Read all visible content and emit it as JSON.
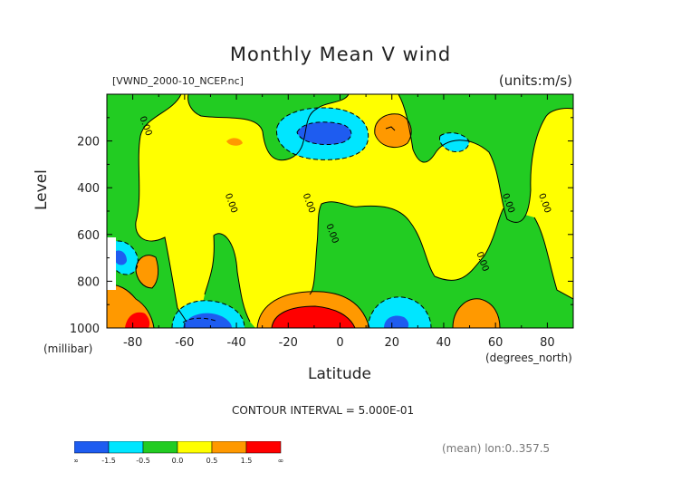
{
  "header": {
    "title": "Monthly Mean V wind",
    "file": "[VWND_2000-10_NCEP.nc]",
    "units": "(units:m/s)"
  },
  "footer": {
    "contour_interval": "CONTOUR INTERVAL = 5.000E-01",
    "mean": "(mean) lon:0..357.5"
  },
  "colorbar": {
    "colors": [
      "#1e5cf0",
      "#00e6ff",
      "#22cc22",
      "#ffff00",
      "#ff9900",
      "#ff0000"
    ],
    "labels": [
      "-∞",
      "-1.5",
      "-0.5",
      "0.0",
      "0.5",
      "1.5",
      "∞"
    ]
  },
  "chart_data": {
    "type": "contour",
    "title": "Monthly Mean V wind",
    "xlabel": "Latitude",
    "ylabel": "Level",
    "x_unit": "(degrees_north)",
    "y_unit": "(millibar)",
    "xlim": [
      -90,
      90
    ],
    "ylim": [
      1000,
      0
    ],
    "xticks": [
      -80,
      -60,
      -40,
      -20,
      0,
      20,
      40,
      60,
      80
    ],
    "yticks": [
      1000,
      800,
      600,
      400,
      200
    ],
    "contour_labels": [
      {
        "text": "0.00",
        "x": -76,
        "y": 140
      },
      {
        "text": "0.00",
        "x": -43,
        "y": 470
      },
      {
        "text": "0.00",
        "x": -13,
        "y": 470
      },
      {
        "text": "0.00",
        "x": -4,
        "y": 600
      },
      {
        "text": "0.00",
        "x": 54,
        "y": 720
      },
      {
        "text": "0.00",
        "x": 64,
        "y": 470
      },
      {
        "text": "0.00",
        "x": 78,
        "y": 470
      }
    ],
    "features": [
      {
        "sign": "positive",
        "x": -14,
        "y": 975,
        "peak_class": ">1.5"
      },
      {
        "sign": "positive",
        "x": -85,
        "y": 975,
        "peak_class": ">1.5"
      },
      {
        "sign": "negative",
        "x": -13,
        "y": 155,
        "peak_class": "<-1.5"
      },
      {
        "sign": "negative",
        "x": -51,
        "y": 975,
        "peak_class": "<-1.5"
      },
      {
        "sign": "negative",
        "x": 21,
        "y": 970,
        "peak_class": "<-1.5"
      },
      {
        "sign": "positive",
        "x": 56,
        "y": 960,
        "peak_class": "0.5..1.5"
      },
      {
        "sign": "positive",
        "x": 2,
        "y": 140,
        "peak_class": "0.5..1.5"
      }
    ]
  }
}
